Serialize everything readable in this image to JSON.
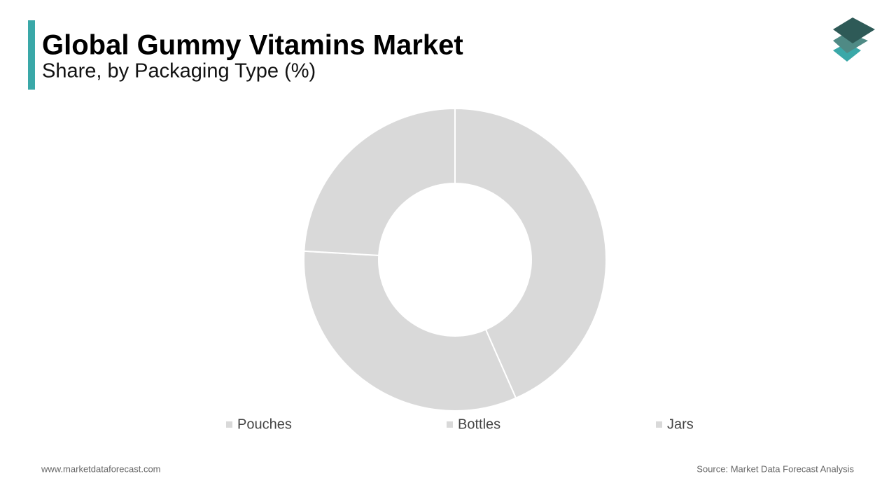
{
  "chart_data": {
    "type": "donut",
    "title": "Global Gummy Vitamins Market",
    "subtitle": "Share, by Packaging Type (%)",
    "categories": [
      "Pouches",
      "Bottles",
      "Jars"
    ],
    "values": [
      43.4,
      32.5,
      24.1
    ],
    "colors": [
      "#d9d9d9",
      "#d9d9d9",
      "#d9d9d9"
    ]
  },
  "footer": {
    "website": "www.marketdataforecast.com",
    "source": "Source: Market Data Forecast Analysis"
  }
}
